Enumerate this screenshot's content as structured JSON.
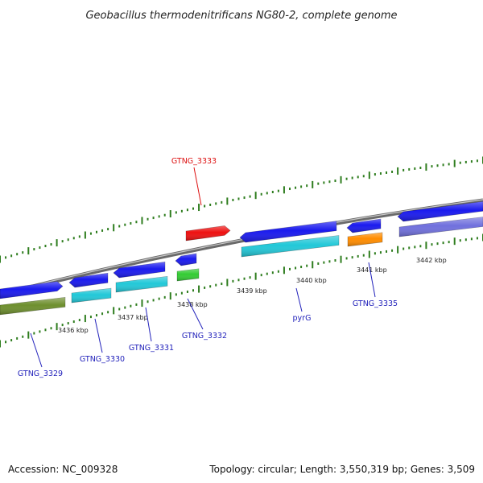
{
  "title": "Geobacillus thermodenitrificans NG80-2, complete genome",
  "footer": {
    "accession": "Accession: NC_009328",
    "summary": "Topology: circular; Length: 3,550,319 bp; Genes: 3,509"
  },
  "colors": {
    "backbone": "#888888",
    "ticks": "#2e7d1e",
    "blue_gene": "#1a1aee",
    "cyan_gene": "#22c8d8",
    "olive_gene": "#6e8f2e",
    "green_gene": "#33cc33",
    "red_gene": "#ee1111",
    "orange_gene": "#ff8c00",
    "purple_gene": "#7070dd",
    "label_blue": "#2222bb",
    "label_red": "#dd1111"
  },
  "scale": {
    "ticks": [
      "3436 kbp",
      "3437 kbp",
      "3438 kbp",
      "3439 kbp",
      "3440 kbp",
      "3441 kbp",
      "3442 kbp"
    ]
  },
  "genes": [
    {
      "name": "GTNG_3329",
      "color": "label_blue"
    },
    {
      "name": "GTNG_3330",
      "color": "label_blue"
    },
    {
      "name": "GTNG_3331",
      "color": "label_blue"
    },
    {
      "name": "GTNG_3332",
      "color": "label_blue"
    },
    {
      "name": "GTNG_3333",
      "color": "label_red"
    },
    {
      "name": "pyrG",
      "color": "label_blue"
    },
    {
      "name": "GTNG_3335",
      "color": "label_blue"
    }
  ]
}
